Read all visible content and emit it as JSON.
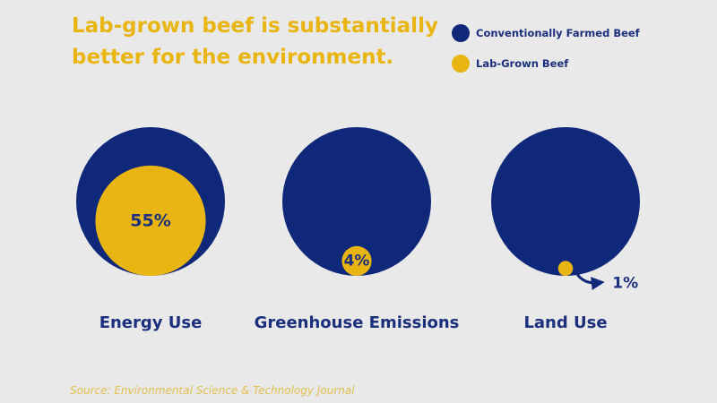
{
  "chart_data": {
    "type": "circle-comparison",
    "title": "Lab-grown beef is substantially better for the environment.",
    "series": [
      {
        "name": "Conventionally Farmed Beef",
        "color": "#10287a"
      },
      {
        "name": "Lab-Grown Beef",
        "color": "#e8b512"
      }
    ],
    "categories": [
      "Energy Use",
      "Greenhouse Emissions",
      "Land Use"
    ],
    "values": [
      55,
      4,
      1
    ],
    "value_labels": [
      "55%",
      "4%",
      "1%"
    ],
    "annotation": "arrow pointing to the 1% value"
  },
  "source": "Source: Environmental Science & Technology Journal",
  "colors": {
    "background": "#e9e9e9",
    "accent": "#e8b512",
    "primary": "#10287a",
    "label": "#1b2f7c",
    "source": "#e3bf4f"
  }
}
